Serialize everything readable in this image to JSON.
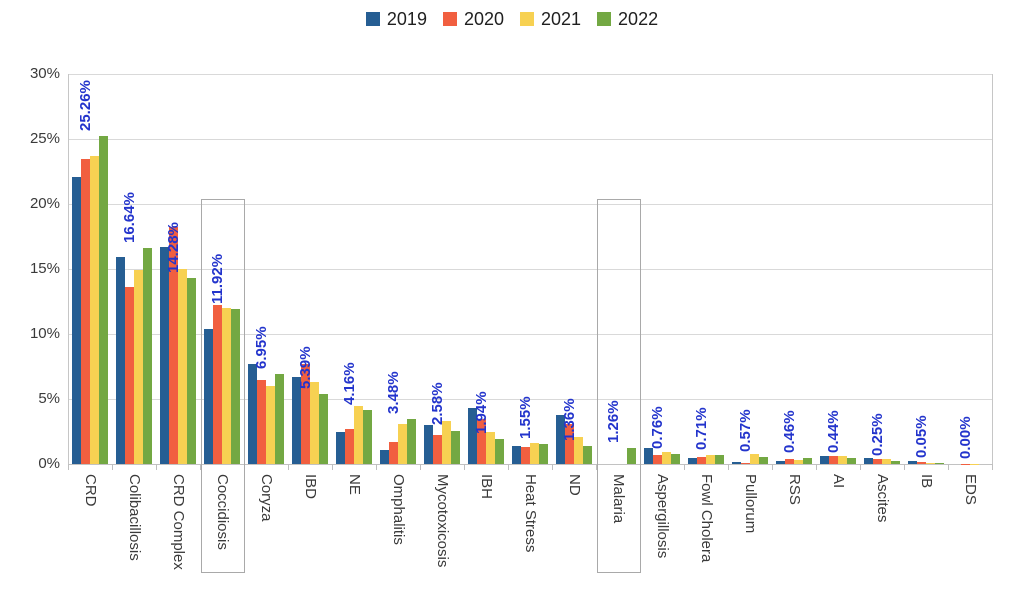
{
  "chart_data": {
    "type": "bar",
    "title": "",
    "categories": [
      "CRD",
      "Colibacillosis",
      "CRD Complex",
      "Coccidiosis",
      "Coryza",
      "IBD",
      "NE",
      "Omphalitis",
      "Mycotoxicosis",
      "IBH",
      "Heat Stress",
      "ND",
      "Malaria",
      "Aspergillosis",
      "Fowl Cholera",
      "Pullorum",
      "RSS",
      "AI",
      "Ascites",
      "IB",
      "EDS"
    ],
    "series": [
      {
        "name": "2019",
        "color": "#265e93",
        "values": [
          22.1,
          15.9,
          16.7,
          10.4,
          7.7,
          6.7,
          2.5,
          1.1,
          3.0,
          4.3,
          1.4,
          3.8,
          0,
          1.2,
          0.45,
          0.15,
          0.27,
          0.6,
          0.46,
          0.22,
          0
        ]
      },
      {
        "name": "2020",
        "color": "#f15f40",
        "values": [
          23.5,
          13.6,
          18.2,
          12.2,
          6.5,
          7.7,
          2.7,
          1.7,
          2.2,
          3.5,
          1.3,
          3.1,
          0,
          0.7,
          0.52,
          0.06,
          0.37,
          0.65,
          0.38,
          0.16,
          0.04
        ]
      },
      {
        "name": "2021",
        "color": "#f7d152",
        "values": [
          23.7,
          14.9,
          15.0,
          12.0,
          6.0,
          6.3,
          4.5,
          3.1,
          3.3,
          2.5,
          1.6,
          2.1,
          0,
          0.9,
          0.68,
          0.78,
          0.32,
          0.62,
          0.36,
          0.1,
          0.02
        ]
      },
      {
        "name": "2022",
        "color": "#73a843",
        "values": [
          25.26,
          16.64,
          14.28,
          11.92,
          6.95,
          5.39,
          4.16,
          3.48,
          2.58,
          1.94,
          1.55,
          1.36,
          1.26,
          0.76,
          0.71,
          0.57,
          0.46,
          0.44,
          0.25,
          0.05,
          0.0
        ]
      }
    ],
    "value_labels": [
      "25.26%",
      "16.64%",
      "14.28%",
      "11.92%",
      "6.95%",
      "5.39%",
      "4.16%",
      "3.48%",
      "2.58%",
      "1.94%",
      "1.55%",
      "1.36%",
      "1.26%",
      "0.76%",
      "0.71%",
      "0.57%",
      "0.46%",
      "0.44%",
      "0.25%",
      "0.05%",
      "0.00%"
    ],
    "value_label_series": "2022",
    "value_label_color": "#2334cc",
    "y_axis": {
      "ticks": [
        "0%",
        "5%",
        "10%",
        "15%",
        "20%",
        "25%",
        "30%"
      ],
      "min": 0,
      "max": 30,
      "step": 5
    },
    "highlighted_categories": [
      "Coccidiosis",
      "Malaria"
    ],
    "legend_position": "top",
    "grid": true,
    "ylabel": "",
    "xlabel": ""
  }
}
